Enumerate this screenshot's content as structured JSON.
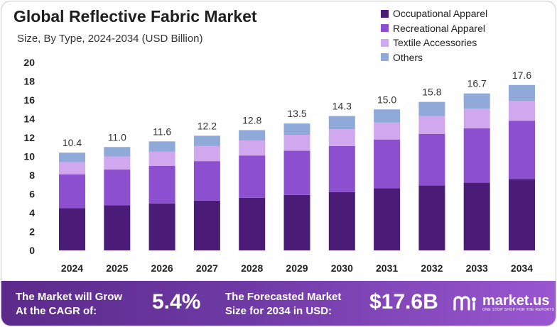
{
  "title": "Global Reflective Fabric Market",
  "subtitle": "Size, By Type, 2024-2034 (USD Billion)",
  "colors": {
    "occupational": "#4a1c78",
    "recreational": "#8c4fcf",
    "textile": "#d1a8ee",
    "others": "#8faad8",
    "footer": "#6f3aa6"
  },
  "chart_data": {
    "type": "bar",
    "stacked": true,
    "categories": [
      "2024",
      "2025",
      "2026",
      "2027",
      "2028",
      "2029",
      "2030",
      "2031",
      "2032",
      "2033",
      "2034"
    ],
    "series": [
      {
        "name": "Occupational Apparel",
        "values": [
          4.5,
          4.8,
          5.0,
          5.3,
          5.6,
          5.9,
          6.2,
          6.6,
          6.9,
          7.2,
          7.6
        ]
      },
      {
        "name": "Recreational Apparel",
        "values": [
          3.6,
          3.8,
          4.0,
          4.2,
          4.5,
          4.7,
          4.9,
          5.2,
          5.5,
          5.8,
          6.2
        ]
      },
      {
        "name": "Textile Accessories",
        "values": [
          1.3,
          1.4,
          1.5,
          1.6,
          1.6,
          1.7,
          1.8,
          1.8,
          1.9,
          2.1,
          2.1
        ]
      },
      {
        "name": "Others",
        "values": [
          1.0,
          1.0,
          1.1,
          1.1,
          1.1,
          1.2,
          1.4,
          1.4,
          1.5,
          1.6,
          1.7
        ]
      }
    ],
    "totals": [
      "10.4",
      "11.0",
      "11.6",
      "12.2",
      "12.8",
      "13.5",
      "14.3",
      "15.0",
      "15.8",
      "16.7",
      "17.6"
    ],
    "ylim": [
      0,
      20
    ],
    "yticks": [
      "0",
      "2",
      "4",
      "6",
      "8",
      "10",
      "12",
      "14",
      "16",
      "18",
      "20"
    ],
    "legend_position": "top-right",
    "grid": false
  },
  "footer": {
    "cagr_label_1": "The Market will Grow",
    "cagr_label_2": "At the CAGR of:",
    "cagr_value": "5.4%",
    "forecast_label_1": "The Forecasted Market",
    "forecast_label_2": "Size for 2034 in USD:",
    "forecast_value": "$17.6B",
    "brand_name": "market.us",
    "brand_tagline": "ONE STOP SHOP FOR THE REPORTS"
  }
}
